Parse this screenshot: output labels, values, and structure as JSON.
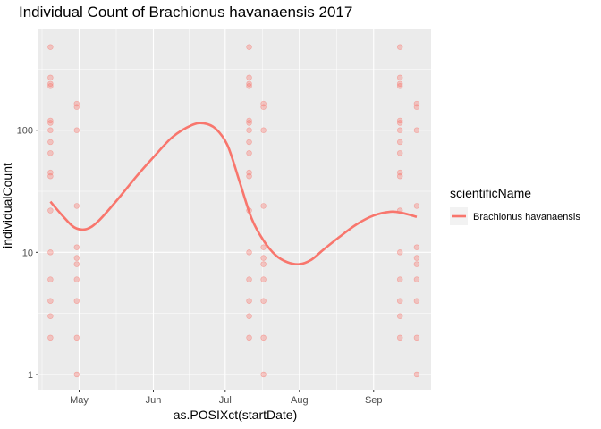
{
  "chart_data": {
    "type": "scatter",
    "title": "Individual Count of Brachionus havanaensis 2017",
    "xlabel": "as.POSIXct(startDate)",
    "ylabel": "individualCount",
    "x_scale": "date",
    "y_scale": "log10",
    "xlim": [
      "2017-04-14",
      "2017-09-25"
    ],
    "ylim": [
      0.75,
      680
    ],
    "x_ticks": [
      {
        "date": "2017-05-01",
        "label": "May"
      },
      {
        "date": "2017-06-01",
        "label": "Jun"
      },
      {
        "date": "2017-07-01",
        "label": "Jul"
      },
      {
        "date": "2017-08-01",
        "label": "Aug"
      },
      {
        "date": "2017-09-01",
        "label": "Sep"
      }
    ],
    "y_ticks": [
      {
        "value": 1,
        "label": "1"
      },
      {
        "value": 10,
        "label": "10"
      },
      {
        "value": 100,
        "label": "100"
      }
    ],
    "grid": true,
    "legend": {
      "title": "scientificName",
      "position": "right",
      "entries": [
        "Brachionus havanaensis"
      ]
    },
    "colors": {
      "series": "#F8766D",
      "panel": "#EBEBEB",
      "grid": "#FFFFFF"
    },
    "points": [
      {
        "x": "2017-04-19",
        "y": 480
      },
      {
        "x": "2017-04-19",
        "y": 270
      },
      {
        "x": "2017-04-19",
        "y": 240
      },
      {
        "x": "2017-04-19",
        "y": 230
      },
      {
        "x": "2017-04-19",
        "y": 120
      },
      {
        "x": "2017-04-19",
        "y": 115
      },
      {
        "x": "2017-04-19",
        "y": 100
      },
      {
        "x": "2017-04-19",
        "y": 80
      },
      {
        "x": "2017-04-19",
        "y": 65
      },
      {
        "x": "2017-04-19",
        "y": 45
      },
      {
        "x": "2017-04-19",
        "y": 42
      },
      {
        "x": "2017-04-19",
        "y": 22
      },
      {
        "x": "2017-04-19",
        "y": 10
      },
      {
        "x": "2017-04-19",
        "y": 6
      },
      {
        "x": "2017-04-19",
        "y": 4
      },
      {
        "x": "2017-04-19",
        "y": 3
      },
      {
        "x": "2017-04-19",
        "y": 2
      },
      {
        "x": "2017-04-30",
        "y": 165
      },
      {
        "x": "2017-04-30",
        "y": 155
      },
      {
        "x": "2017-04-30",
        "y": 100
      },
      {
        "x": "2017-04-30",
        "y": 24
      },
      {
        "x": "2017-04-30",
        "y": 11
      },
      {
        "x": "2017-04-30",
        "y": 9
      },
      {
        "x": "2017-04-30",
        "y": 8
      },
      {
        "x": "2017-04-30",
        "y": 6
      },
      {
        "x": "2017-04-30",
        "y": 4
      },
      {
        "x": "2017-04-30",
        "y": 2
      },
      {
        "x": "2017-04-30",
        "y": 1
      },
      {
        "x": "2017-07-11",
        "y": 480
      },
      {
        "x": "2017-07-11",
        "y": 270
      },
      {
        "x": "2017-07-11",
        "y": 240
      },
      {
        "x": "2017-07-11",
        "y": 230
      },
      {
        "x": "2017-07-11",
        "y": 120
      },
      {
        "x": "2017-07-11",
        "y": 115
      },
      {
        "x": "2017-07-11",
        "y": 100
      },
      {
        "x": "2017-07-11",
        "y": 80
      },
      {
        "x": "2017-07-11",
        "y": 65
      },
      {
        "x": "2017-07-11",
        "y": 45
      },
      {
        "x": "2017-07-11",
        "y": 42
      },
      {
        "x": "2017-07-11",
        "y": 22
      },
      {
        "x": "2017-07-11",
        "y": 10
      },
      {
        "x": "2017-07-11",
        "y": 6
      },
      {
        "x": "2017-07-11",
        "y": 4
      },
      {
        "x": "2017-07-11",
        "y": 3
      },
      {
        "x": "2017-07-11",
        "y": 2
      },
      {
        "x": "2017-07-17",
        "y": 165
      },
      {
        "x": "2017-07-17",
        "y": 155
      },
      {
        "x": "2017-07-17",
        "y": 100
      },
      {
        "x": "2017-07-17",
        "y": 24
      },
      {
        "x": "2017-07-17",
        "y": 11
      },
      {
        "x": "2017-07-17",
        "y": 9
      },
      {
        "x": "2017-07-17",
        "y": 8
      },
      {
        "x": "2017-07-17",
        "y": 6
      },
      {
        "x": "2017-07-17",
        "y": 4
      },
      {
        "x": "2017-07-17",
        "y": 2
      },
      {
        "x": "2017-07-17",
        "y": 1
      },
      {
        "x": "2017-09-12",
        "y": 480
      },
      {
        "x": "2017-09-12",
        "y": 270
      },
      {
        "x": "2017-09-12",
        "y": 240
      },
      {
        "x": "2017-09-12",
        "y": 230
      },
      {
        "x": "2017-09-12",
        "y": 120
      },
      {
        "x": "2017-09-12",
        "y": 115
      },
      {
        "x": "2017-09-12",
        "y": 100
      },
      {
        "x": "2017-09-12",
        "y": 80
      },
      {
        "x": "2017-09-12",
        "y": 65
      },
      {
        "x": "2017-09-12",
        "y": 45
      },
      {
        "x": "2017-09-12",
        "y": 42
      },
      {
        "x": "2017-09-12",
        "y": 22
      },
      {
        "x": "2017-09-12",
        "y": 10
      },
      {
        "x": "2017-09-12",
        "y": 6
      },
      {
        "x": "2017-09-12",
        "y": 4
      },
      {
        "x": "2017-09-12",
        "y": 3
      },
      {
        "x": "2017-09-12",
        "y": 2
      },
      {
        "x": "2017-09-19",
        "y": 165
      },
      {
        "x": "2017-09-19",
        "y": 155
      },
      {
        "x": "2017-09-19",
        "y": 100
      },
      {
        "x": "2017-09-19",
        "y": 24
      },
      {
        "x": "2017-09-19",
        "y": 11
      },
      {
        "x": "2017-09-19",
        "y": 9
      },
      {
        "x": "2017-09-19",
        "y": 8
      },
      {
        "x": "2017-09-19",
        "y": 6
      },
      {
        "x": "2017-09-19",
        "y": 4
      },
      {
        "x": "2017-09-19",
        "y": 2
      },
      {
        "x": "2017-09-19",
        "y": 1
      }
    ],
    "smooth": [
      {
        "x": "2017-04-19",
        "y": 26
      },
      {
        "x": "2017-04-24",
        "y": 20
      },
      {
        "x": "2017-04-29",
        "y": 16
      },
      {
        "x": "2017-05-04",
        "y": 15.5
      },
      {
        "x": "2017-05-09",
        "y": 18
      },
      {
        "x": "2017-05-17",
        "y": 27
      },
      {
        "x": "2017-05-25",
        "y": 42
      },
      {
        "x": "2017-06-01",
        "y": 60
      },
      {
        "x": "2017-06-09",
        "y": 88
      },
      {
        "x": "2017-06-17",
        "y": 110
      },
      {
        "x": "2017-06-22",
        "y": 114
      },
      {
        "x": "2017-06-27",
        "y": 103
      },
      {
        "x": "2017-07-02",
        "y": 75
      },
      {
        "x": "2017-07-07",
        "y": 38
      },
      {
        "x": "2017-07-12",
        "y": 19
      },
      {
        "x": "2017-07-17",
        "y": 12.5
      },
      {
        "x": "2017-07-22",
        "y": 9.5
      },
      {
        "x": "2017-07-27",
        "y": 8.3
      },
      {
        "x": "2017-08-01",
        "y": 8.0
      },
      {
        "x": "2017-08-06",
        "y": 8.7
      },
      {
        "x": "2017-08-11",
        "y": 10.5
      },
      {
        "x": "2017-08-18",
        "y": 13.5
      },
      {
        "x": "2017-08-25",
        "y": 17
      },
      {
        "x": "2017-09-01",
        "y": 20
      },
      {
        "x": "2017-09-08",
        "y": 21.5
      },
      {
        "x": "2017-09-13",
        "y": 21
      },
      {
        "x": "2017-09-19",
        "y": 19.5
      }
    ]
  }
}
